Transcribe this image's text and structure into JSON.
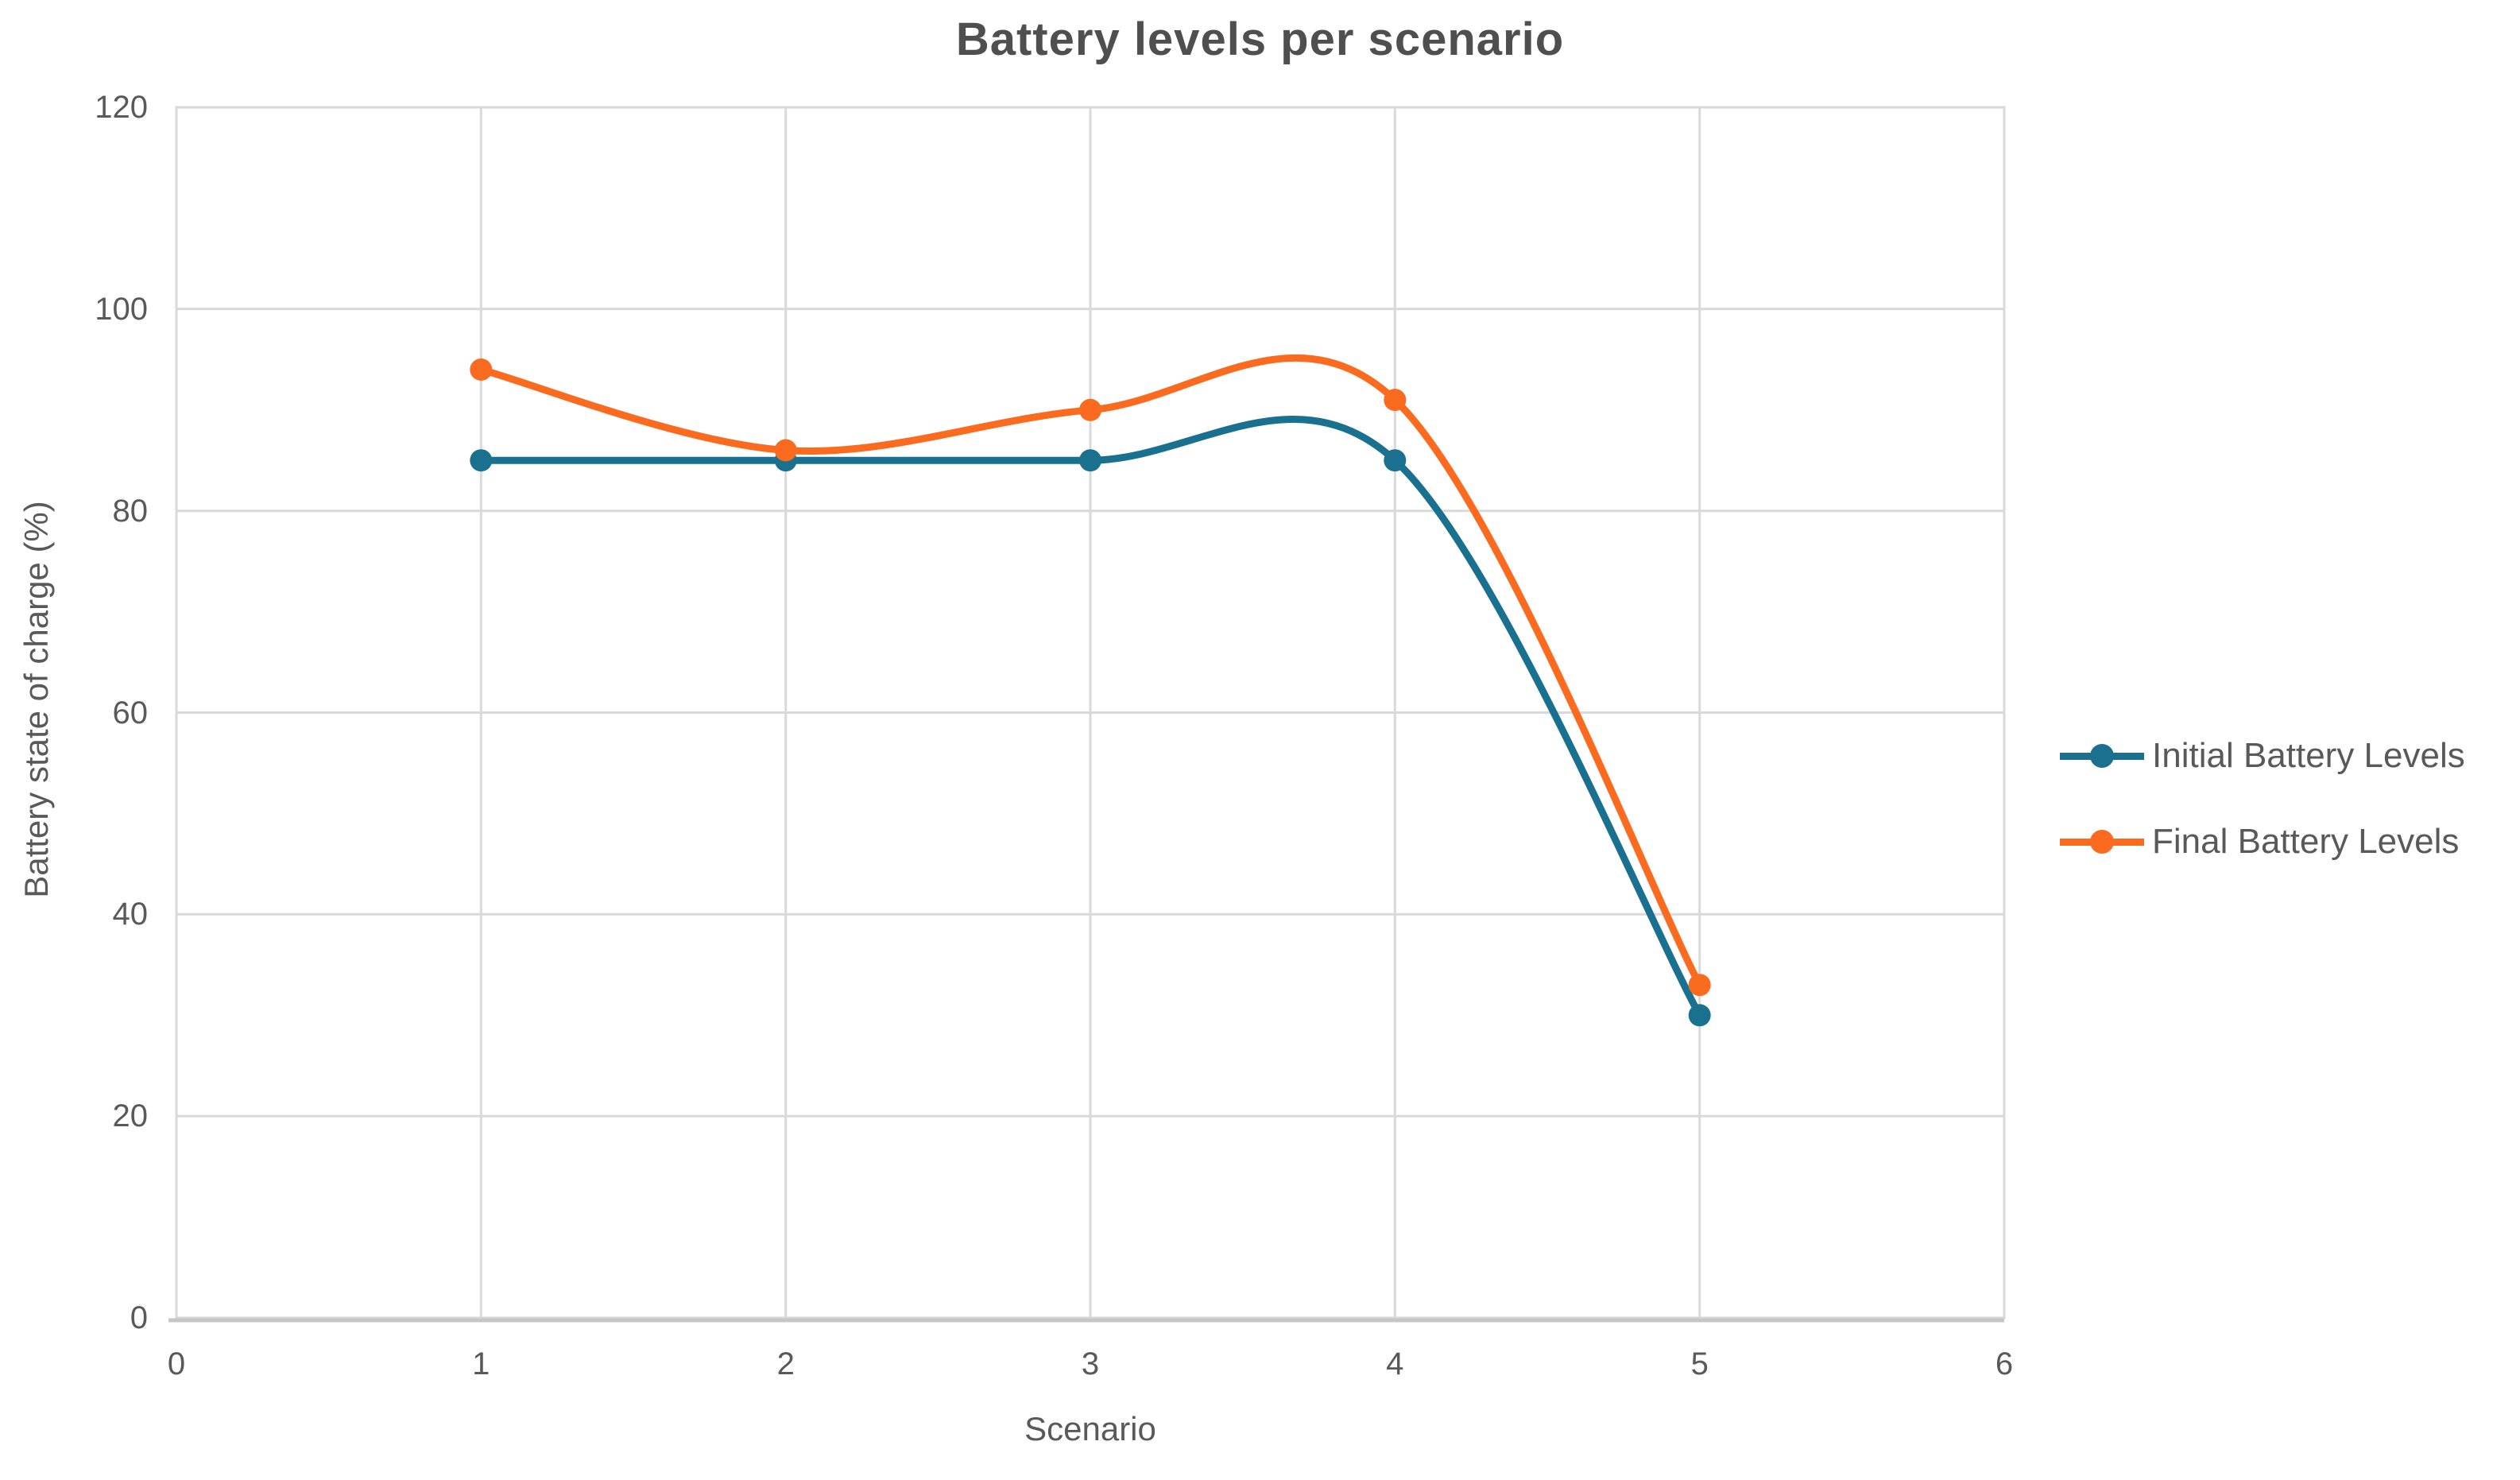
{
  "chart_data": {
    "type": "line",
    "title": "Battery levels per scenario",
    "xlabel": "Scenario",
    "ylabel": "Battery state of charge (%)",
    "x": [
      1,
      2,
      3,
      4,
      5
    ],
    "series": [
      {
        "name": "Initial Battery Levels",
        "color": "#1A708F",
        "values": [
          85,
          85,
          85,
          85,
          30
        ]
      },
      {
        "name": "Final Battery Levels",
        "color": "#FA6A1F",
        "values": [
          94,
          86,
          90,
          91,
          33
        ]
      }
    ],
    "xlim": [
      0,
      6
    ],
    "ylim": [
      0,
      120
    ],
    "x_ticks": [
      0,
      1,
      2,
      3,
      4,
      5,
      6
    ],
    "y_ticks": [
      0,
      20,
      40,
      60,
      80,
      100,
      120
    ],
    "grid": true,
    "smooth": true,
    "marker": "circle",
    "legend_position": "right",
    "colors": {
      "grid": "#D9D9D9",
      "axis": "#C6C6C6",
      "text": "#595959",
      "title": "#4F4F4F"
    }
  }
}
